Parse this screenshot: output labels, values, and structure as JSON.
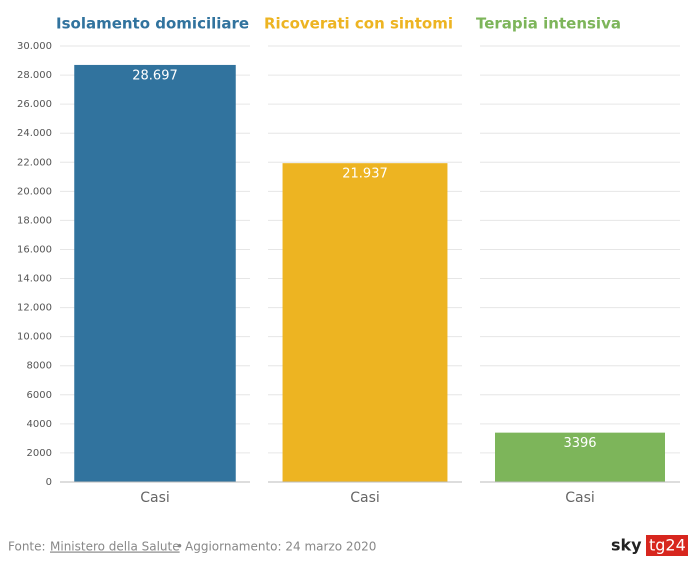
{
  "chart_data": {
    "type": "bar",
    "ylim": [
      0,
      30000
    ],
    "yticks": [
      0,
      2000,
      4000,
      6000,
      8000,
      {
        "value": 10000,
        "label": "10.000"
      },
      {
        "value": 12000,
        "label": "12.000"
      },
      {
        "value": 14000,
        "label": "14.000"
      },
      {
        "value": 16000,
        "label": "16.000"
      },
      {
        "value": 18000,
        "label": "18.000"
      },
      {
        "value": 20000,
        "label": "20.000"
      },
      {
        "value": 22000,
        "label": "22.000"
      },
      {
        "value": 24000,
        "label": "24.000"
      },
      {
        "value": 26000,
        "label": "26.000"
      },
      {
        "value": 28000,
        "label": "28.000"
      },
      {
        "value": 30000,
        "label": "30.000"
      }
    ],
    "grid": true,
    "panels": [
      {
        "title": "Isolamento domiciliare",
        "categories": [
          "Casi"
        ],
        "values": [
          28697
        ],
        "value_labels": [
          "28.697"
        ],
        "color": "#31739e"
      },
      {
        "title": "Ricoverati con sintomi",
        "categories": [
          "Casi"
        ],
        "values": [
          21937
        ],
        "value_labels": [
          "21.937"
        ],
        "color": "#edb422"
      },
      {
        "title": "Terapia intensiva",
        "categories": [
          "Casi"
        ],
        "values": [
          3396
        ],
        "color": "#7db55a"
      }
    ]
  },
  "footer": {
    "prefix": "Fonte:",
    "source": "Ministero della Salute",
    "separator": "•",
    "updated": "Aggiornamento: 24 marzo 2020"
  },
  "logo": {
    "left": "sky",
    "right": "tg24"
  }
}
